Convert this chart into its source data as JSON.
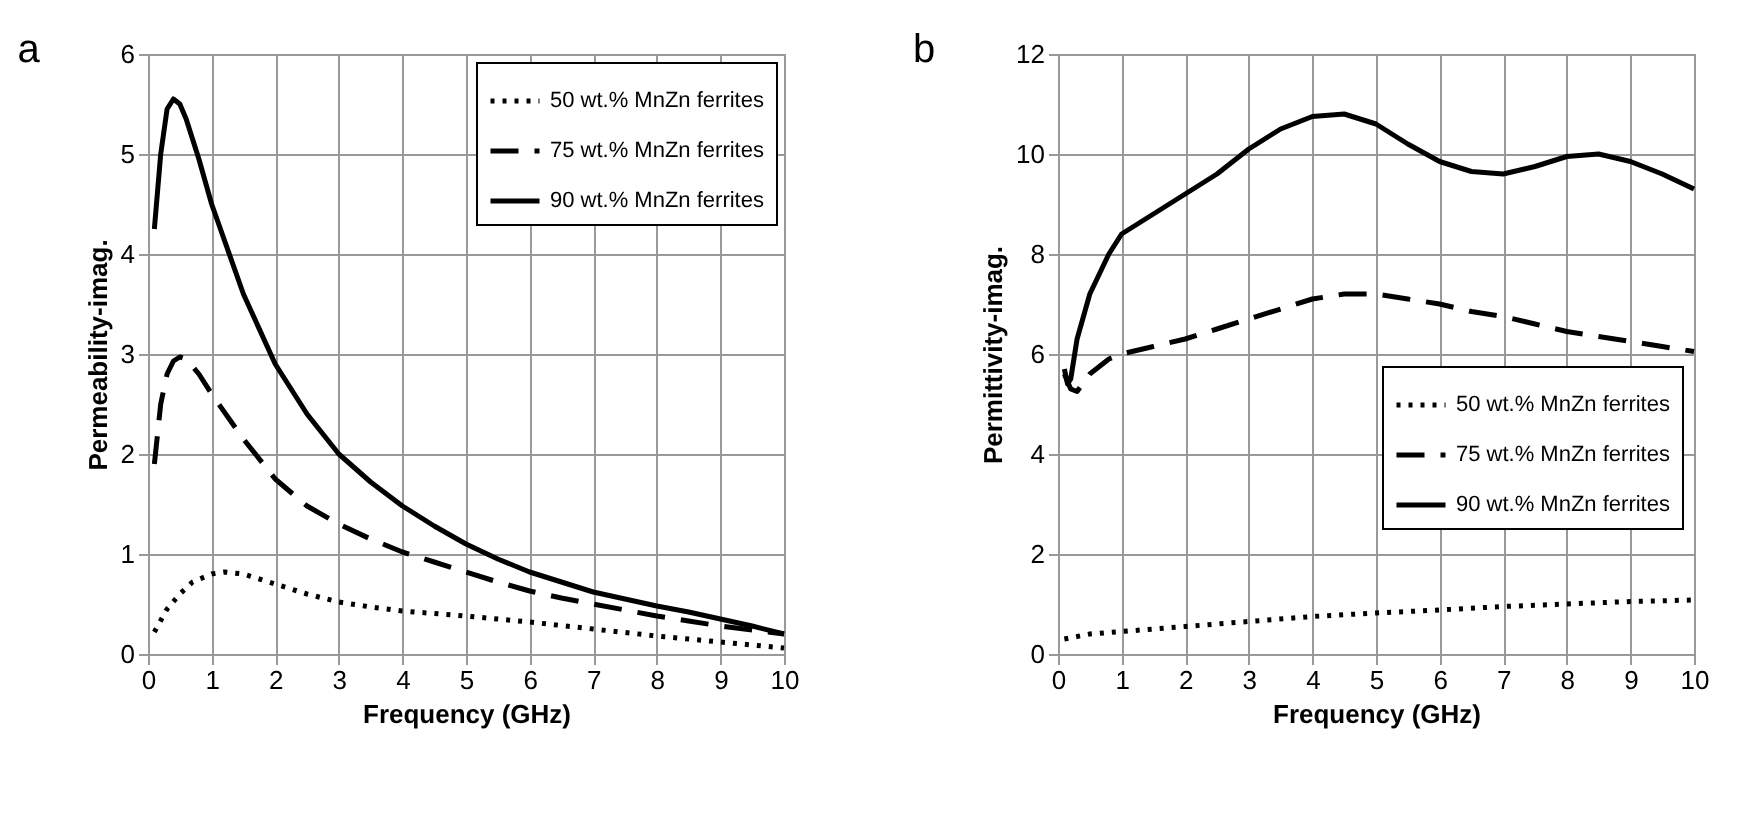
{
  "chart_data": [
    {
      "type": "line",
      "title": "a",
      "xlabel": "Frequency (GHz)",
      "ylabel": "Permeability-imag.",
      "xlim": [
        0,
        10
      ],
      "xticks": [
        0,
        1,
        2,
        3,
        4,
        5,
        6,
        7,
        8,
        9,
        10
      ],
      "ylim": [
        0,
        6
      ],
      "yticks": [
        0,
        1,
        2,
        3,
        4,
        5,
        6
      ],
      "grid": true,
      "legend": "top right",
      "series": [
        {
          "name": "50 wt.% MnZn ferrites",
          "color": "#000000",
          "line_style": "dotted",
          "x": [
            0.1,
            0.3,
            0.5,
            0.7,
            1,
            1.2,
            1.5,
            2,
            2.5,
            3,
            3.5,
            4,
            5,
            6,
            7,
            8,
            9,
            10
          ],
          "values": [
            0.22,
            0.45,
            0.6,
            0.72,
            0.8,
            0.82,
            0.8,
            0.7,
            0.6,
            0.52,
            0.47,
            0.43,
            0.38,
            0.32,
            0.25,
            0.18,
            0.12,
            0.06
          ]
        },
        {
          "name": "75 wt.% MnZn ferrites",
          "color": "#000000",
          "line_style": "dashed",
          "x": [
            0.1,
            0.2,
            0.3,
            0.4,
            0.5,
            0.6,
            0.8,
            1,
            1.5,
            2,
            2.5,
            3,
            3.5,
            4,
            4.5,
            5,
            5.5,
            6,
            6.5,
            7,
            7.5,
            8,
            8.5,
            9,
            9.5,
            10
          ],
          "values": [
            1.9,
            2.5,
            2.8,
            2.93,
            2.97,
            2.95,
            2.8,
            2.6,
            2.15,
            1.75,
            1.48,
            1.3,
            1.15,
            1.02,
            0.92,
            0.82,
            0.72,
            0.63,
            0.56,
            0.5,
            0.44,
            0.38,
            0.33,
            0.28,
            0.24,
            0.2
          ]
        },
        {
          "name": "90 wt.% MnZn ferrites",
          "color": "#000000",
          "line_style": "solid",
          "x": [
            0.1,
            0.2,
            0.3,
            0.4,
            0.5,
            0.6,
            0.8,
            1,
            1.5,
            2,
            2.5,
            3,
            3.5,
            4,
            4.5,
            5,
            5.5,
            6,
            6.5,
            7,
            7.5,
            8,
            8.5,
            9,
            9.5,
            10
          ],
          "values": [
            4.25,
            5.0,
            5.45,
            5.55,
            5.5,
            5.35,
            4.95,
            4.5,
            3.6,
            2.9,
            2.4,
            2.0,
            1.72,
            1.48,
            1.28,
            1.1,
            0.95,
            0.82,
            0.72,
            0.62,
            0.55,
            0.48,
            0.42,
            0.35,
            0.28,
            0.2
          ]
        }
      ]
    },
    {
      "type": "line",
      "title": "b",
      "xlabel": "Frequency (GHz)",
      "ylabel": "Permittivity-imag.",
      "xlim": [
        0,
        10
      ],
      "xticks": [
        0,
        1,
        2,
        3,
        4,
        5,
        6,
        7,
        8,
        9,
        10
      ],
      "ylim": [
        0,
        12
      ],
      "yticks": [
        0,
        2,
        4,
        6,
        8,
        10,
        12
      ],
      "grid": true,
      "legend": "bottom right",
      "series": [
        {
          "name": "50 wt.% MnZn ferrites",
          "color": "#000000",
          "line_style": "dotted",
          "x": [
            0.1,
            0.5,
            1,
            2,
            3,
            4,
            5,
            6,
            7,
            8,
            9,
            10
          ],
          "values": [
            0.3,
            0.4,
            0.45,
            0.55,
            0.65,
            0.75,
            0.82,
            0.88,
            0.95,
            1.0,
            1.05,
            1.08
          ]
        },
        {
          "name": "75 wt.% MnZn ferrites",
          "color": "#000000",
          "line_style": "dashed",
          "x": [
            0.1,
            0.2,
            0.3,
            0.5,
            0.8,
            1,
            1.5,
            2,
            2.5,
            3,
            3.5,
            4,
            4.5,
            5,
            5.5,
            6,
            6.5,
            7,
            7.5,
            8,
            8.5,
            9,
            9.5,
            10
          ],
          "values": [
            5.6,
            5.3,
            5.25,
            5.6,
            5.9,
            6.0,
            6.15,
            6.3,
            6.5,
            6.7,
            6.9,
            7.1,
            7.2,
            7.2,
            7.1,
            7.0,
            6.85,
            6.75,
            6.6,
            6.45,
            6.35,
            6.25,
            6.15,
            6.05
          ]
        },
        {
          "name": "90 wt.% MnZn ferrites",
          "color": "#000000",
          "line_style": "solid",
          "x": [
            0.1,
            0.15,
            0.2,
            0.3,
            0.5,
            0.8,
            1,
            1.5,
            2,
            2.5,
            3,
            3.5,
            4,
            4.5,
            5,
            5.5,
            6,
            6.5,
            7,
            7.5,
            8,
            8.5,
            9,
            9.5,
            10
          ],
          "values": [
            5.7,
            5.4,
            5.5,
            6.3,
            7.2,
            8.0,
            8.4,
            8.8,
            9.2,
            9.6,
            10.1,
            10.5,
            10.75,
            10.8,
            10.6,
            10.2,
            9.85,
            9.65,
            9.6,
            9.75,
            9.95,
            10.0,
            9.85,
            9.6,
            9.3
          ]
        }
      ]
    }
  ]
}
